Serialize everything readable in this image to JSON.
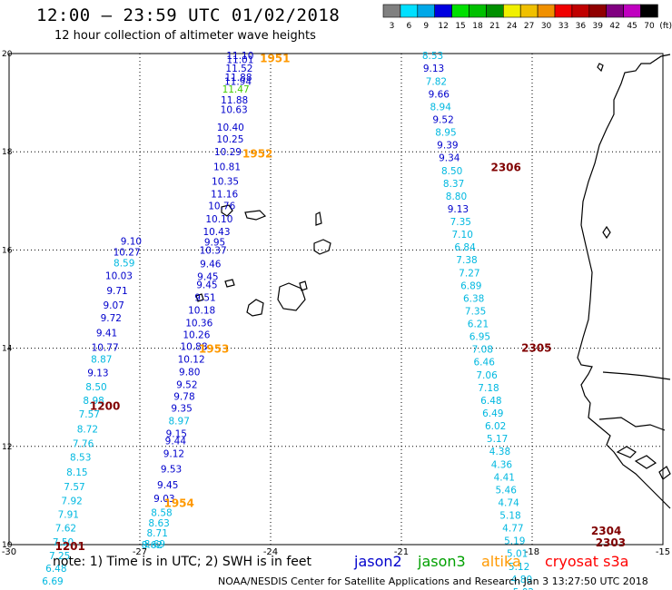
{
  "header": {
    "title": "12:00 – 23:59 UTC 01/02/2018",
    "subtitle": "12 hour collection of altimeter wave heights"
  },
  "color_scale": {
    "unit": "(ft)",
    "bins": [
      {
        "label": "3",
        "color": "#808080"
      },
      {
        "label": "6",
        "color": "#00e0ff"
      },
      {
        "label": "9",
        "color": "#00a8e8"
      },
      {
        "label": "12",
        "color": "#0000e0"
      },
      {
        "label": "15",
        "color": "#00e000"
      },
      {
        "label": "18",
        "color": "#00c000"
      },
      {
        "label": "21",
        "color": "#009000"
      },
      {
        "label": "24",
        "color": "#f0f000"
      },
      {
        "label": "27",
        "color": "#f0c000"
      },
      {
        "label": "30",
        "color": "#f09000"
      },
      {
        "label": "33",
        "color": "#f00000"
      },
      {
        "label": "36",
        "color": "#c00000"
      },
      {
        "label": "39",
        "color": "#900000"
      },
      {
        "label": "42",
        "color": "#800080"
      },
      {
        "label": "45",
        "color": "#c000c0"
      },
      {
        "label": "70",
        "color": "#000000"
      }
    ]
  },
  "axes": {
    "lon_min": -30,
    "lon_max": -15,
    "lat_min": 10,
    "lat_max": 20,
    "x_ticks": [
      "-30",
      "-27",
      "-24",
      "-21",
      "-18",
      "-15"
    ],
    "y_ticks": [
      "20",
      "18",
      "16",
      "14",
      "12",
      "10"
    ]
  },
  "legend": {
    "satellites": [
      {
        "name": "jason2",
        "color": "#0000cc"
      },
      {
        "name": "jason3",
        "color": "#00a000"
      },
      {
        "name": "altika",
        "color": "#ff9900"
      },
      {
        "name": "cryosat s3a",
        "color": "#ff0000"
      }
    ]
  },
  "colors": {
    "cyan": "#00b8e0",
    "blue": "#0000cc",
    "orange": "#ff9900",
    "darkred": "#800000",
    "green": "#44cc00"
  },
  "tracks": [
    {
      "values": [
        {
          "v": "11.10",
          "lon": -24.7,
          "lat": 19.96,
          "c": "blue"
        },
        {
          "v": "11.01",
          "lon": -24.7,
          "lat": 19.88,
          "c": "blue"
        },
        {
          "v": "11.52",
          "lon": -24.72,
          "lat": 19.7,
          "c": "blue"
        },
        {
          "v": "11.88",
          "lon": -24.74,
          "lat": 19.52,
          "c": "blue"
        },
        {
          "v": "11.94",
          "lon": -24.75,
          "lat": 19.44,
          "c": "blue"
        },
        {
          "v": "11.47",
          "lon": -24.8,
          "lat": 19.28,
          "c": "green"
        },
        {
          "v": "11.88",
          "lon": -24.83,
          "lat": 19.06,
          "c": "blue"
        },
        {
          "v": "10.63",
          "lon": -24.84,
          "lat": 18.86,
          "c": "blue"
        },
        {
          "v": "10.40",
          "lon": -24.92,
          "lat": 18.5,
          "c": "blue"
        },
        {
          "v": "10.25",
          "lon": -24.93,
          "lat": 18.26,
          "c": "blue"
        },
        {
          "v": "10.29",
          "lon": -24.98,
          "lat": 18.0,
          "c": "blue"
        },
        {
          "v": "10.81",
          "lon": -25.0,
          "lat": 17.7,
          "c": "blue"
        },
        {
          "v": "10.35",
          "lon": -25.04,
          "lat": 17.4,
          "c": "blue"
        },
        {
          "v": "11.16",
          "lon": -25.06,
          "lat": 17.14,
          "c": "blue"
        },
        {
          "v": "10.76",
          "lon": -25.12,
          "lat": 16.9,
          "c": "blue"
        },
        {
          "v": "10.10",
          "lon": -25.18,
          "lat": 16.64,
          "c": "blue"
        },
        {
          "v": "10.43",
          "lon": -25.24,
          "lat": 16.38,
          "c": "blue"
        },
        {
          "v": "9.95",
          "lon": -25.28,
          "lat": 16.16,
          "c": "blue"
        },
        {
          "v": "10.37",
          "lon": -25.32,
          "lat": 16.0,
          "c": "blue"
        },
        {
          "v": "9.46",
          "lon": -25.38,
          "lat": 15.72,
          "c": "blue"
        },
        {
          "v": "9.45",
          "lon": -25.44,
          "lat": 15.46,
          "c": "blue"
        },
        {
          "v": "9.45",
          "lon": -25.46,
          "lat": 15.3,
          "c": "blue"
        },
        {
          "v": "9.51",
          "lon": -25.5,
          "lat": 15.04,
          "c": "blue"
        },
        {
          "v": "10.18",
          "lon": -25.58,
          "lat": 14.78,
          "c": "blue"
        },
        {
          "v": "10.36",
          "lon": -25.64,
          "lat": 14.52,
          "c": "blue"
        },
        {
          "v": "10.26",
          "lon": -25.7,
          "lat": 14.28,
          "c": "blue"
        },
        {
          "v": "10.88",
          "lon": -25.76,
          "lat": 14.04,
          "c": "blue"
        },
        {
          "v": "10.12",
          "lon": -25.82,
          "lat": 13.78,
          "c": "blue"
        },
        {
          "v": "9.80",
          "lon": -25.86,
          "lat": 13.52,
          "c": "blue"
        },
        {
          "v": "9.52",
          "lon": -25.92,
          "lat": 13.26,
          "c": "blue"
        },
        {
          "v": "9.78",
          "lon": -25.98,
          "lat": 13.02,
          "c": "blue"
        },
        {
          "v": "9.35",
          "lon": -26.04,
          "lat": 12.78,
          "c": "blue"
        },
        {
          "v": "8.97",
          "lon": -26.1,
          "lat": 12.52,
          "c": "cyan"
        },
        {
          "v": "9.15",
          "lon": -26.16,
          "lat": 12.26,
          "c": "blue"
        },
        {
          "v": "9.44",
          "lon": -26.18,
          "lat": 12.12,
          "c": "blue"
        },
        {
          "v": "9.12",
          "lon": -26.22,
          "lat": 11.86,
          "c": "blue"
        },
        {
          "v": "9.53",
          "lon": -26.28,
          "lat": 11.54,
          "c": "blue"
        },
        {
          "v": "9.45",
          "lon": -26.36,
          "lat": 11.22,
          "c": "blue"
        },
        {
          "v": "9.03",
          "lon": -26.44,
          "lat": 10.94,
          "c": "blue"
        },
        {
          "v": "8.58",
          "lon": -26.5,
          "lat": 10.66,
          "c": "cyan"
        },
        {
          "v": "8.63",
          "lon": -26.56,
          "lat": 10.44,
          "c": "cyan"
        },
        {
          "v": "8.71",
          "lon": -26.6,
          "lat": 10.24,
          "c": "cyan"
        },
        {
          "v": "8.69",
          "lon": -26.66,
          "lat": 10.02,
          "c": "cyan"
        },
        {
          "v": "8.62",
          "lon": -26.72,
          "lat": 10.0,
          "c": "cyan"
        }
      ]
    },
    {
      "values": [
        {
          "v": "9.10",
          "lon": -27.2,
          "lat": 16.18,
          "c": "blue"
        },
        {
          "v": "10.27",
          "lon": -27.3,
          "lat": 15.96,
          "c": "blue"
        },
        {
          "v": "8.59",
          "lon": -27.36,
          "lat": 15.74,
          "c": "cyan"
        },
        {
          "v": "10.03",
          "lon": -27.48,
          "lat": 15.48,
          "c": "blue"
        },
        {
          "v": "9.71",
          "lon": -27.52,
          "lat": 15.18,
          "c": "blue"
        },
        {
          "v": "9.07",
          "lon": -27.6,
          "lat": 14.88,
          "c": "blue"
        },
        {
          "v": "9.72",
          "lon": -27.66,
          "lat": 14.62,
          "c": "blue"
        },
        {
          "v": "9.41",
          "lon": -27.76,
          "lat": 14.32,
          "c": "blue"
        },
        {
          "v": "10.77",
          "lon": -27.8,
          "lat": 14.02,
          "c": "blue"
        },
        {
          "v": "8.87",
          "lon": -27.88,
          "lat": 13.78,
          "c": "cyan"
        },
        {
          "v": "9.13",
          "lon": -27.96,
          "lat": 13.5,
          "c": "blue"
        },
        {
          "v": "8.50",
          "lon": -28.0,
          "lat": 13.22,
          "c": "cyan"
        },
        {
          "v": "8.98",
          "lon": -28.06,
          "lat": 12.94,
          "c": "cyan"
        },
        {
          "v": "7.57",
          "lon": -28.16,
          "lat": 12.66,
          "c": "cyan"
        },
        {
          "v": "8.72",
          "lon": -28.2,
          "lat": 12.36,
          "c": "cyan"
        },
        {
          "v": "7.76",
          "lon": -28.3,
          "lat": 12.06,
          "c": "cyan"
        },
        {
          "v": "8.53",
          "lon": -28.36,
          "lat": 11.78,
          "c": "cyan"
        },
        {
          "v": "8.15",
          "lon": -28.44,
          "lat": 11.48,
          "c": "cyan"
        },
        {
          "v": "7.57",
          "lon": -28.5,
          "lat": 11.18,
          "c": "cyan"
        },
        {
          "v": "7.92",
          "lon": -28.56,
          "lat": 10.9,
          "c": "cyan"
        },
        {
          "v": "7.91",
          "lon": -28.64,
          "lat": 10.62,
          "c": "cyan"
        },
        {
          "v": "7.62",
          "lon": -28.7,
          "lat": 10.34,
          "c": "cyan"
        },
        {
          "v": "7.50",
          "lon": -28.76,
          "lat": 10.06,
          "c": "cyan"
        },
        {
          "v": "7.25",
          "lon": -28.84,
          "lat": 9.78,
          "c": "cyan"
        },
        {
          "v": "6.48",
          "lon": -28.92,
          "lat": 9.52,
          "c": "cyan"
        },
        {
          "v": "6.69",
          "lon": -29.0,
          "lat": 9.26,
          "c": "cyan"
        }
      ]
    },
    {
      "values": [
        {
          "v": "8.53",
          "lon": -20.28,
          "lat": 19.96,
          "c": "cyan"
        },
        {
          "v": "9.13",
          "lon": -20.26,
          "lat": 19.7,
          "c": "blue"
        },
        {
          "v": "7.82",
          "lon": -20.2,
          "lat": 19.44,
          "c": "cyan"
        },
        {
          "v": "9.66",
          "lon": -20.14,
          "lat": 19.18,
          "c": "blue"
        },
        {
          "v": "8.94",
          "lon": -20.1,
          "lat": 18.92,
          "c": "cyan"
        },
        {
          "v": "9.52",
          "lon": -20.04,
          "lat": 18.66,
          "c": "blue"
        },
        {
          "v": "8.95",
          "lon": -19.98,
          "lat": 18.4,
          "c": "cyan"
        },
        {
          "v": "9.39",
          "lon": -19.94,
          "lat": 18.14,
          "c": "blue"
        },
        {
          "v": "9.34",
          "lon": -19.9,
          "lat": 17.88,
          "c": "blue"
        },
        {
          "v": "8.50",
          "lon": -19.84,
          "lat": 17.62,
          "c": "cyan"
        },
        {
          "v": "8.37",
          "lon": -19.8,
          "lat": 17.36,
          "c": "cyan"
        },
        {
          "v": "8.80",
          "lon": -19.74,
          "lat": 17.1,
          "c": "cyan"
        },
        {
          "v": "9.13",
          "lon": -19.7,
          "lat": 16.84,
          "c": "blue"
        },
        {
          "v": "7.35",
          "lon": -19.64,
          "lat": 16.58,
          "c": "cyan"
        },
        {
          "v": "7.10",
          "lon": -19.6,
          "lat": 16.32,
          "c": "cyan"
        },
        {
          "v": "6.84",
          "lon": -19.54,
          "lat": 16.06,
          "c": "cyan"
        },
        {
          "v": "7.38",
          "lon": -19.5,
          "lat": 15.8,
          "c": "cyan"
        },
        {
          "v": "7.27",
          "lon": -19.44,
          "lat": 15.54,
          "c": "cyan"
        },
        {
          "v": "6.89",
          "lon": -19.4,
          "lat": 15.28,
          "c": "cyan"
        },
        {
          "v": "6.38",
          "lon": -19.34,
          "lat": 15.02,
          "c": "cyan"
        },
        {
          "v": "7.35",
          "lon": -19.3,
          "lat": 14.76,
          "c": "cyan"
        },
        {
          "v": "6.21",
          "lon": -19.24,
          "lat": 14.5,
          "c": "cyan"
        },
        {
          "v": "6.95",
          "lon": -19.2,
          "lat": 14.24,
          "c": "cyan"
        },
        {
          "v": "7.08",
          "lon": -19.14,
          "lat": 13.98,
          "c": "cyan"
        },
        {
          "v": "6.46",
          "lon": -19.1,
          "lat": 13.72,
          "c": "cyan"
        },
        {
          "v": "7.06",
          "lon": -19.04,
          "lat": 13.46,
          "c": "cyan"
        },
        {
          "v": "7.18",
          "lon": -19.0,
          "lat": 13.2,
          "c": "cyan"
        },
        {
          "v": "6.48",
          "lon": -18.94,
          "lat": 12.94,
          "c": "cyan"
        },
        {
          "v": "6.49",
          "lon": -18.9,
          "lat": 12.68,
          "c": "cyan"
        },
        {
          "v": "6.02",
          "lon": -18.84,
          "lat": 12.42,
          "c": "cyan"
        },
        {
          "v": "5.17",
          "lon": -18.8,
          "lat": 12.16,
          "c": "cyan"
        },
        {
          "v": "4.38",
          "lon": -18.74,
          "lat": 11.9,
          "c": "cyan"
        },
        {
          "v": "4.36",
          "lon": -18.7,
          "lat": 11.64,
          "c": "cyan"
        },
        {
          "v": "4.41",
          "lon": -18.64,
          "lat": 11.38,
          "c": "cyan"
        },
        {
          "v": "5.46",
          "lon": -18.6,
          "lat": 11.12,
          "c": "cyan"
        },
        {
          "v": "4.74",
          "lon": -18.54,
          "lat": 10.86,
          "c": "cyan"
        },
        {
          "v": "5.18",
          "lon": -18.5,
          "lat": 10.6,
          "c": "cyan"
        },
        {
          "v": "4.77",
          "lon": -18.44,
          "lat": 10.34,
          "c": "cyan"
        },
        {
          "v": "5.19",
          "lon": -18.4,
          "lat": 10.08,
          "c": "cyan"
        },
        {
          "v": "5.01",
          "lon": -18.34,
          "lat": 9.82,
          "c": "cyan"
        },
        {
          "v": "5.12",
          "lon": -18.3,
          "lat": 9.56,
          "c": "cyan"
        },
        {
          "v": "4.80",
          "lon": -18.24,
          "lat": 9.3,
          "c": "cyan"
        },
        {
          "v": "5.02",
          "lon": -18.2,
          "lat": 9.04,
          "c": "cyan"
        }
      ]
    }
  ],
  "time_labels": [
    {
      "text": "1951",
      "lon": -23.9,
      "lat": 19.92,
      "c": "orange"
    },
    {
      "text": "1952",
      "lon": -24.3,
      "lat": 17.98,
      "c": "orange"
    },
    {
      "text": "1953",
      "lon": -25.3,
      "lat": 14.0,
      "c": "orange"
    },
    {
      "text": "1954",
      "lon": -26.1,
      "lat": 10.86,
      "c": "orange"
    },
    {
      "text": "1200",
      "lon": -27.8,
      "lat": 12.84,
      "c": "darkred"
    },
    {
      "text": "1201",
      "lon": -28.6,
      "lat": 9.98,
      "c": "darkred"
    },
    {
      "text": "2306",
      "lon": -18.6,
      "lat": 17.7,
      "c": "darkred"
    },
    {
      "text": "2305",
      "lon": -17.9,
      "lat": 14.02,
      "c": "darkred"
    },
    {
      "text": "2304",
      "lon": -16.3,
      "lat": 10.3,
      "c": "darkred"
    },
    {
      "text": "2303",
      "lon": -16.2,
      "lat": 10.06,
      "c": "darkred"
    }
  ],
  "footnote": "note:  1) Time is in UTC;  2) SWH is in feet",
  "credit": "NOAA/NESDIS Center for Satellite Applications and Research    Jan  3 13:27:50 UTC 2018"
}
